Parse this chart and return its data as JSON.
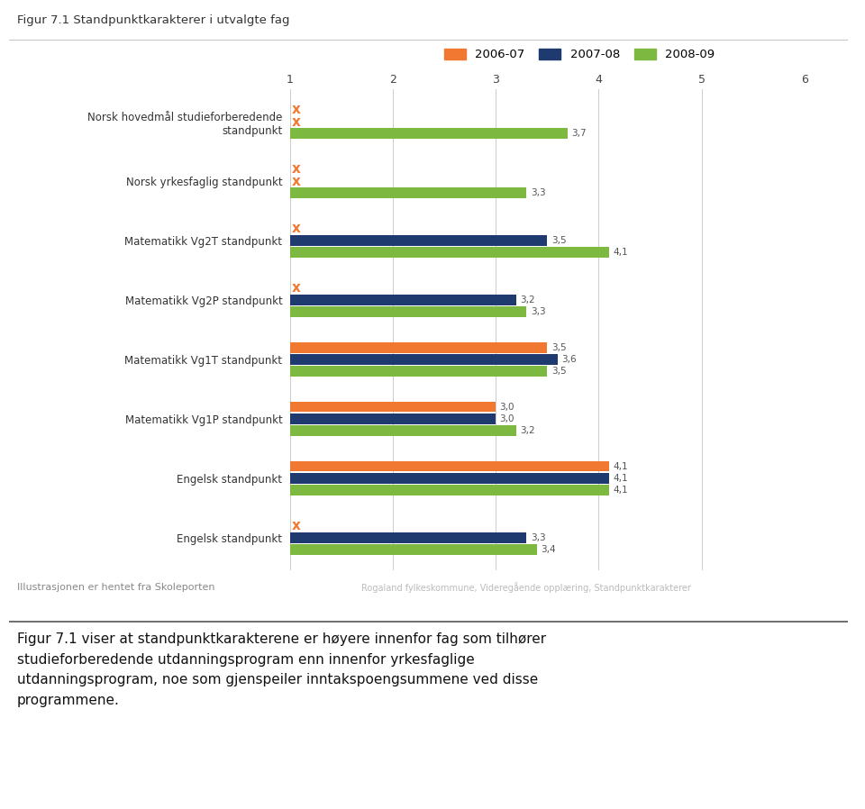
{
  "title": "Figur 7.1 Standpunktkarakterer i utvalgte fag",
  "categories": [
    "Norsk hovedmål studieforberedende\nstandpunkt",
    "Norsk yrkesfaglig standpunkt",
    "Matematikk Vg2T standpunkt",
    "Matematikk Vg2P standpunkt",
    "Matematikk Vg1T standpunkt",
    "Matematikk Vg1P standpunkt",
    "Engelsk standpunkt",
    "Engelsk standpunkt"
  ],
  "series": {
    "2006-07": [
      null,
      null,
      null,
      null,
      3.5,
      3.0,
      4.1,
      null
    ],
    "2007-08": [
      null,
      null,
      3.5,
      3.2,
      3.6,
      3.0,
      4.1,
      3.3
    ],
    "2008-09": [
      3.7,
      3.3,
      4.1,
      3.3,
      3.5,
      3.2,
      4.1,
      3.4
    ]
  },
  "colors": {
    "2006-07": "#F07830",
    "2007-08": "#1E3A6E",
    "2008-09": "#7DB840"
  },
  "marker_color": "#F07830",
  "xlim_min": 1,
  "xlim_max": 6,
  "xticks": [
    1,
    2,
    3,
    4,
    5,
    6
  ],
  "bar_height": 0.2,
  "legend_labels": [
    "2006-07",
    "2007-08",
    "2008-09"
  ],
  "footer_left": "Illustrasjonen er hentet fra Skoleporten",
  "footer_right": "Rogaland fylkeskommune, Videregående opplæring, Standpunktkarakterer",
  "body_text": "Figur 7.1 viser at standpunktkarakterene er høyere innenfor fag som tilhører\nstudieforberedende utdanningsprogram enn innenfor yrkesfaglige\nutdanningsprogram, noe som gjenspeiler inntakspoengsummene ved disse\nprogrammene.",
  "background_color": "#ffffff"
}
